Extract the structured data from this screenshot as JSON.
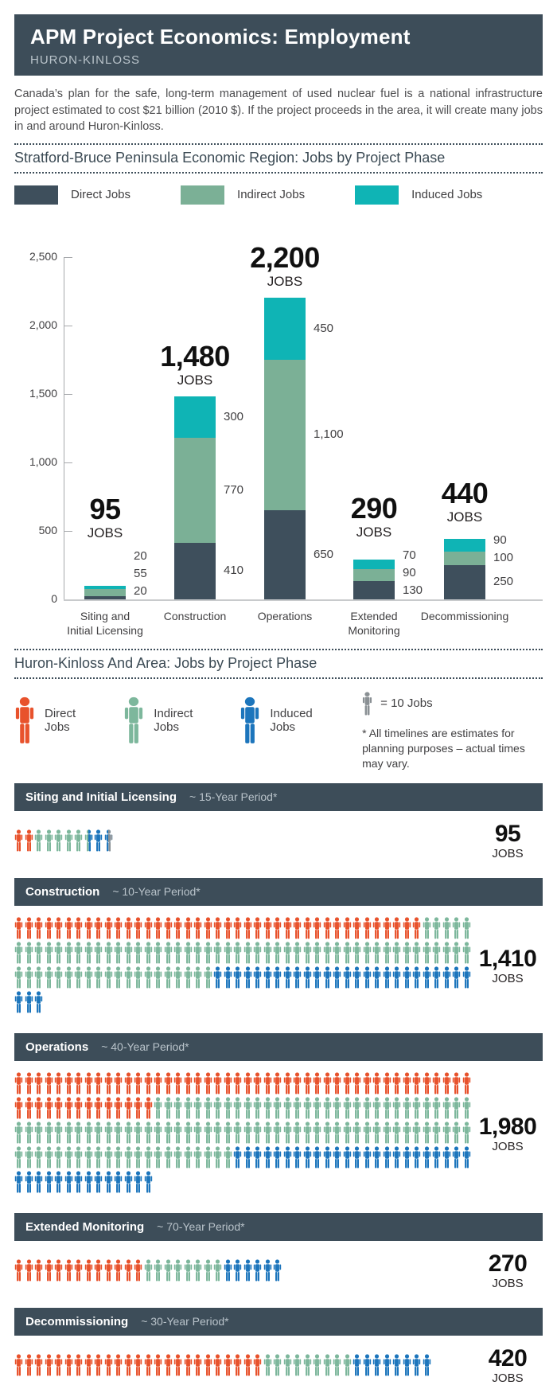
{
  "header": {
    "title": "APM Project Economics: Employment",
    "subtitle": "HURON-KINLOSS"
  },
  "intro": "Canada’s plan for the safe, long-term management of used nuclear fuel is a national infrastructure project estimated to cost $21 billion (2010 $). If the project proceeds in the area, it will create many jobs in and around Huron-Kinloss.",
  "section1": {
    "title": "Stratford-Bruce Peninsula Economic Region: Jobs by Project Phase",
    "legend": [
      {
        "label": "Direct Jobs",
        "color": "#3e4f5c"
      },
      {
        "label": "Indirect Jobs",
        "color": "#7bb096"
      },
      {
        "label": "Induced Jobs",
        "color": "#0fb4b5"
      }
    ]
  },
  "section2": {
    "title": "Huron-Kinloss And Area: Jobs by Project Phase",
    "legend": [
      {
        "label": "Direct Jobs",
        "color": "#e8522c"
      },
      {
        "label": "Indirect Jobs",
        "color": "#7db79c"
      },
      {
        "label": "Induced Jobs",
        "color": "#1c75bc"
      }
    ],
    "unit_note": "= 10 Jobs",
    "unit_color": "#8a9094",
    "footnote": "* All timelines are estimates for planning purposes – actual times may vary.",
    "jobs_word": "JOBS"
  },
  "chart_data": [
    {
      "type": "bar",
      "stacked": true,
      "title": "Stratford-Bruce Peninsula Economic Region: Jobs by Project Phase",
      "categories": [
        "Siting and\nInitial Licensing",
        "Construction",
        "Operations",
        "Extended\nMonitoring",
        "Decommissioning"
      ],
      "series": [
        {
          "name": "Direct Jobs",
          "color": "#3e4f5c",
          "values": [
            20,
            410,
            650,
            130,
            250
          ]
        },
        {
          "name": "Indirect Jobs",
          "color": "#7bb096",
          "values": [
            55,
            770,
            1100,
            90,
            100
          ]
        },
        {
          "name": "Induced Jobs",
          "color": "#0fb4b5",
          "values": [
            20,
            300,
            450,
            70,
            90
          ]
        }
      ],
      "segment_labels": [
        [
          "20",
          "55",
          "20"
        ],
        [
          "410",
          "770",
          "300"
        ],
        [
          "650",
          "1,100",
          "450"
        ],
        [
          "130",
          "90",
          "70"
        ],
        [
          "250",
          "100",
          "90"
        ]
      ],
      "totals": [
        "95",
        "1,480",
        "2,200",
        "290",
        "440"
      ],
      "totals_word": "JOBS",
      "yticks": [
        "0",
        "500",
        "1,000",
        "1,500",
        "2,000",
        "2,500"
      ],
      "ylim": [
        0,
        2500
      ],
      "grid": false,
      "legend_position": "top"
    },
    {
      "type": "pictogram",
      "title": "Huron-Kinloss And Area: Jobs by Project Phase",
      "unit": "1 person icon = 10 jobs",
      "icon_colors": {
        "direct": "#e8522c",
        "indirect": "#7db79c",
        "induced": "#1c75bc",
        "rest": "#8a9094"
      },
      "phases": [
        {
          "name": "Siting and Initial Licensing",
          "period": "~ 15-Year Period*",
          "total": "95",
          "segments": {
            "direct": 2,
            "indirect": 5.5,
            "induced": 2
          }
        },
        {
          "name": "Construction",
          "period": "~ 10-Year Period*",
          "total": "1,410",
          "segments": {
            "direct": 41,
            "indirect": 71,
            "induced": 29
          }
        },
        {
          "name": "Operations",
          "period": "~ 40-Year Period*",
          "total": "1,980",
          "segments": {
            "direct": 60,
            "indirect": 100,
            "induced": 38
          }
        },
        {
          "name": "Extended Monitoring",
          "period": "~ 70-Year Period*",
          "total": "270",
          "segments": {
            "direct": 13,
            "indirect": 8,
            "induced": 6
          }
        },
        {
          "name": "Decommissioning",
          "period": "~ 30-Year Period*",
          "total": "420",
          "segments": {
            "direct": 25,
            "indirect": 9,
            "induced": 8
          }
        }
      ]
    }
  ]
}
